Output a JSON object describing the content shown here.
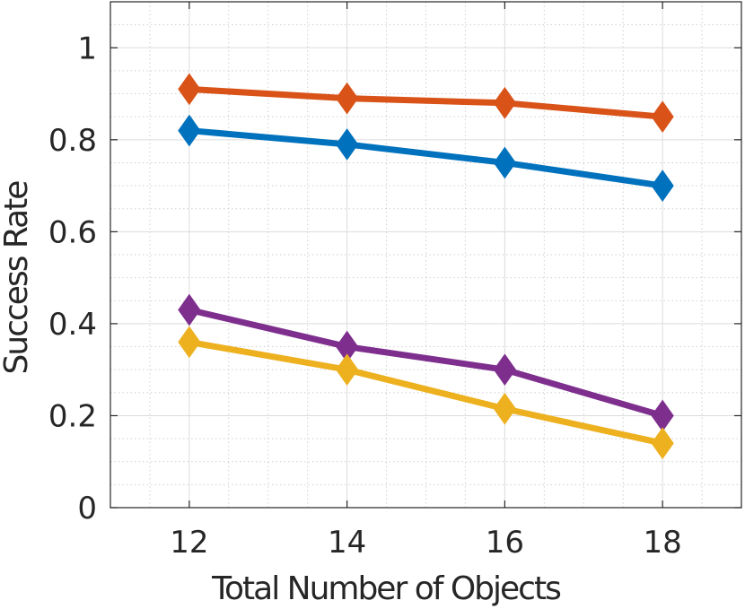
{
  "chart_data": {
    "type": "line",
    "xlabel": "Total Number of Objects",
    "ylabel": "Success Rate",
    "xlim": [
      11,
      19
    ],
    "ylim": [
      0,
      1.1
    ],
    "x": [
      12,
      14,
      16,
      18
    ],
    "xticks": [
      "12",
      "14",
      "16",
      "18"
    ],
    "yticks": [
      "0",
      "0.2",
      "0.4",
      "0.6",
      "0.8",
      "1"
    ],
    "grid": true,
    "minor_grid": true,
    "marker": "diamond",
    "series": [
      {
        "color": "#D95319",
        "values": [
          0.91,
          0.89,
          0.88,
          0.85
        ]
      },
      {
        "color": "#0072BD",
        "values": [
          0.82,
          0.79,
          0.75,
          0.7
        ]
      },
      {
        "color": "#7E2F8E",
        "values": [
          0.43,
          0.35,
          0.3,
          0.2
        ]
      },
      {
        "color": "#EDB120",
        "values": [
          0.36,
          0.3,
          0.215,
          0.14
        ]
      }
    ]
  }
}
